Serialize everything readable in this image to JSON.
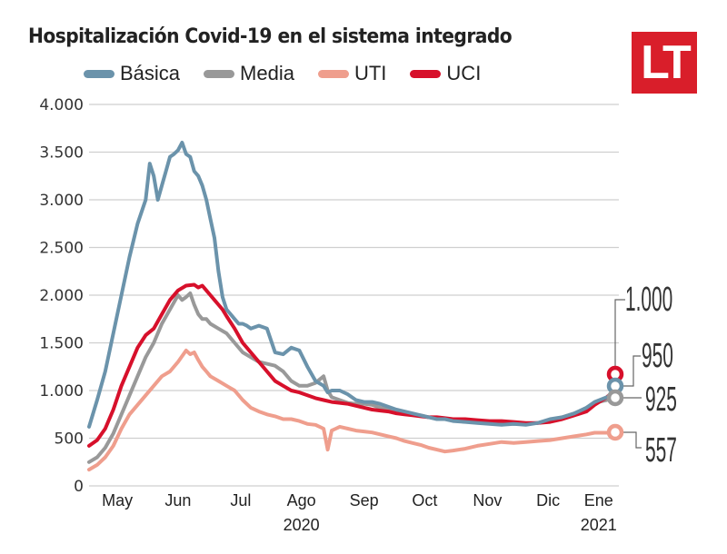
{
  "title": "Hospitalización Covid-19 en el sistema integrado",
  "logo": {
    "text": "LT",
    "color": "#d91e2a"
  },
  "chart_data": {
    "type": "line",
    "title": "Hospitalización Covid-19 en el sistema integrado",
    "xlabel": "",
    "ylabel": "",
    "ylim": [
      0,
      4000
    ],
    "yticks": [
      0,
      500,
      1000,
      1500,
      2000,
      2500,
      3000,
      3500,
      4000
    ],
    "ytick_labels": [
      "0",
      "500",
      "1.000",
      "1.500",
      "2.000",
      "2.500",
      "3.000",
      "3.500",
      "4.000"
    ],
    "x_unit": "days since 2020-04-20",
    "xlim": [
      0,
      262
    ],
    "xticks": [
      {
        "label": "May",
        "x": 14
      },
      {
        "label": "Jun",
        "x": 44
      },
      {
        "label": "Jul",
        "x": 75
      },
      {
        "label": "Ago",
        "x": 105
      },
      {
        "label": "Sep",
        "x": 136
      },
      {
        "label": "Oct",
        "x": 166
      },
      {
        "label": "Nov",
        "x": 197
      },
      {
        "label": "Dic",
        "x": 227
      },
      {
        "label": "Ene",
        "x": 252
      }
    ],
    "year_labels": [
      {
        "label": "2020",
        "x": 105
      },
      {
        "label": "2021",
        "x": 252
      }
    ],
    "grid": true,
    "legend_position": "top",
    "series": [
      {
        "name": "Básica",
        "color": "#6b93ab",
        "x": [
          0,
          4,
          8,
          12,
          16,
          20,
          24,
          28,
          30,
          32,
          34,
          36,
          38,
          40,
          42,
          44,
          46,
          48,
          50,
          52,
          54,
          56,
          58,
          60,
          62,
          64,
          66,
          68,
          70,
          72,
          74,
          76,
          78,
          80,
          84,
          88,
          92,
          96,
          100,
          104,
          108,
          112,
          116,
          118,
          120,
          124,
          128,
          132,
          136,
          140,
          144,
          148,
          152,
          156,
          160,
          164,
          168,
          172,
          176,
          180,
          186,
          192,
          198,
          204,
          210,
          216,
          222,
          228,
          234,
          240,
          246,
          250,
          256,
          260
        ],
        "values": [
          620,
          900,
          1200,
          1600,
          2000,
          2400,
          2750,
          3000,
          3380,
          3250,
          3000,
          3150,
          3300,
          3450,
          3480,
          3520,
          3600,
          3480,
          3450,
          3300,
          3250,
          3150,
          3000,
          2800,
          2600,
          2250,
          1980,
          1850,
          1800,
          1750,
          1700,
          1700,
          1680,
          1650,
          1680,
          1650,
          1400,
          1380,
          1450,
          1420,
          1250,
          1100,
          1050,
          980,
          1000,
          1000,
          960,
          900,
          880,
          880,
          860,
          830,
          800,
          780,
          760,
          740,
          720,
          700,
          700,
          680,
          670,
          660,
          650,
          640,
          650,
          640,
          660,
          700,
          720,
          760,
          820,
          880,
          930,
          950
        ]
      },
      {
        "name": "Media",
        "color": "#999999",
        "x": [
          0,
          4,
          8,
          12,
          16,
          20,
          24,
          28,
          32,
          36,
          40,
          44,
          46,
          48,
          50,
          52,
          54,
          56,
          58,
          60,
          64,
          68,
          72,
          76,
          80,
          84,
          88,
          92,
          96,
          100,
          104,
          108,
          112,
          116,
          118,
          120,
          124,
          128,
          132,
          136,
          140,
          144,
          148,
          152,
          156,
          160,
          164,
          168,
          172,
          176,
          180,
          186,
          192,
          198,
          204,
          210,
          216,
          222,
          228,
          234,
          240,
          246,
          250,
          256,
          260
        ],
        "values": [
          250,
          300,
          400,
          550,
          750,
          950,
          1150,
          1350,
          1500,
          1700,
          1850,
          2000,
          1950,
          1980,
          2020,
          1900,
          1800,
          1750,
          1750,
          1700,
          1650,
          1600,
          1500,
          1400,
          1350,
          1300,
          1280,
          1260,
          1200,
          1100,
          1050,
          1050,
          1080,
          1150,
          1000,
          930,
          900,
          870,
          860,
          860,
          850,
          820,
          800,
          790,
          770,
          750,
          740,
          720,
          710,
          700,
          700,
          690,
          680,
          670,
          660,
          650,
          650,
          660,
          690,
          720,
          760,
          820,
          870,
          900,
          925
        ]
      },
      {
        "name": "UTI",
        "color": "#ef9e8d",
        "x": [
          0,
          4,
          8,
          12,
          16,
          20,
          24,
          28,
          32,
          36,
          40,
          44,
          48,
          50,
          52,
          54,
          56,
          58,
          60,
          64,
          68,
          72,
          76,
          80,
          84,
          88,
          92,
          96,
          100,
          104,
          108,
          112,
          116,
          118,
          120,
          122,
          124,
          128,
          132,
          136,
          140,
          144,
          148,
          152,
          156,
          160,
          164,
          168,
          172,
          176,
          180,
          186,
          192,
          198,
          204,
          210,
          216,
          222,
          228,
          234,
          240,
          246,
          250,
          256,
          260
        ],
        "values": [
          170,
          220,
          300,
          420,
          600,
          750,
          850,
          950,
          1050,
          1150,
          1200,
          1300,
          1420,
          1380,
          1400,
          1320,
          1250,
          1200,
          1150,
          1100,
          1050,
          1000,
          900,
          820,
          780,
          750,
          730,
          700,
          700,
          680,
          650,
          640,
          600,
          380,
          580,
          600,
          620,
          600,
          580,
          570,
          560,
          540,
          520,
          500,
          470,
          450,
          430,
          400,
          380,
          360,
          370,
          390,
          420,
          440,
          460,
          450,
          460,
          470,
          480,
          500,
          520,
          540,
          557,
          557,
          557
        ]
      },
      {
        "name": "UCI",
        "color": "#d7102b",
        "x": [
          0,
          4,
          8,
          12,
          16,
          20,
          24,
          28,
          32,
          36,
          40,
          44,
          48,
          52,
          54,
          56,
          58,
          60,
          62,
          64,
          66,
          68,
          72,
          76,
          80,
          84,
          88,
          92,
          96,
          100,
          104,
          108,
          112,
          116,
          120,
          124,
          128,
          132,
          136,
          140,
          144,
          148,
          152,
          156,
          160,
          164,
          168,
          172,
          176,
          180,
          186,
          192,
          198,
          204,
          210,
          216,
          222,
          228,
          234,
          240,
          246,
          250,
          256,
          260
        ],
        "values": [
          420,
          480,
          600,
          800,
          1050,
          1250,
          1450,
          1580,
          1650,
          1800,
          1950,
          2050,
          2100,
          2110,
          2080,
          2100,
          2050,
          2000,
          1950,
          1900,
          1850,
          1780,
          1650,
          1500,
          1400,
          1300,
          1200,
          1100,
          1050,
          1000,
          980,
          950,
          920,
          900,
          880,
          870,
          860,
          840,
          820,
          800,
          790,
          780,
          760,
          750,
          740,
          730,
          720,
          720,
          710,
          700,
          700,
          690,
          680,
          680,
          670,
          660,
          660,
          670,
          700,
          740,
          780,
          850,
          930,
          1000
        ]
      }
    ],
    "end_labels": [
      {
        "series": "UCI",
        "value": 1000,
        "label": "1.000"
      },
      {
        "series": "Básica",
        "value": 950,
        "label": "950"
      },
      {
        "series": "Media",
        "value": 925,
        "label": "925"
      },
      {
        "series": "UTI",
        "value": 557,
        "label": "557"
      }
    ]
  }
}
